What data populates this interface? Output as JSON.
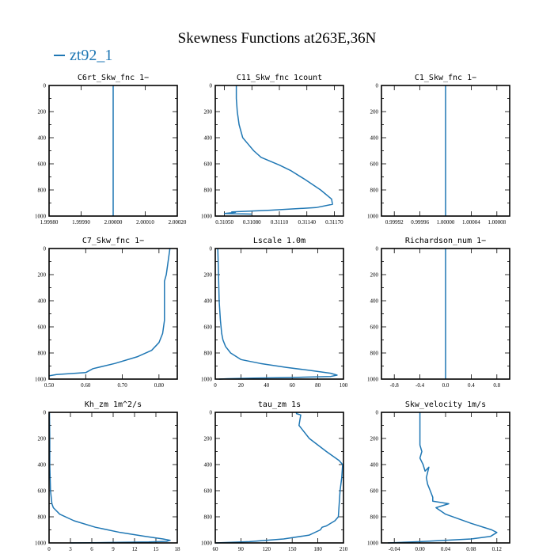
{
  "figure": {
    "title": "Skewness Functions at263E,36N",
    "legend_label": "zt92_1",
    "series_color": "#1f77b4"
  },
  "chart_data": [
    {
      "type": "line",
      "title": "C6rt_Skw_fnc   1−",
      "xlim": [
        1.9998,
        2.0002
      ],
      "ylim": [
        1000,
        0
      ],
      "xticks": [
        1.9998,
        1.9999,
        2.0,
        2.0001,
        2.0002
      ],
      "xtick_labels": [
        "1.99980",
        "1.99990",
        "2.00000",
        "2.00010",
        "2.00020"
      ],
      "yticks": [
        0,
        200,
        400,
        600,
        800,
        1000
      ],
      "series": [
        {
          "x": [
            2.0,
            2.0
          ],
          "y": [
            0,
            1000
          ]
        }
      ]
    },
    {
      "type": "line",
      "title": "C11_Skw_fnc   1count",
      "xlim": [
        0.3104,
        0.3118
      ],
      "ylim": [
        1000,
        0
      ],
      "xticks": [
        0.3105,
        0.3108,
        0.3111,
        0.3114,
        0.3117
      ],
      "xtick_labels": [
        "0.31050",
        "0.31080",
        "0.31110",
        "0.31140",
        "0.31170"
      ],
      "yticks": [
        0,
        200,
        400,
        600,
        800,
        1000
      ],
      "series": [
        {
          "x": [
            0.31063,
            0.31063,
            0.31064,
            0.31066,
            0.3107,
            0.31076,
            0.31082,
            0.3109,
            0.311,
            0.3111,
            0.31122,
            0.31138,
            0.31155,
            0.31167,
            0.31168,
            0.3115,
            0.311,
            0.31058,
            0.31062,
            0.3105,
            0.3108
          ],
          "y": [
            0,
            100,
            200,
            300,
            400,
            450,
            500,
            550,
            580,
            610,
            650,
            720,
            800,
            870,
            910,
            935,
            955,
            968,
            972,
            980,
            985
          ]
        }
      ]
    },
    {
      "type": "line",
      "title": "C1_Skw_fnc   1−",
      "xlim": [
        0.9999,
        1.0001
      ],
      "ylim": [
        1000,
        0
      ],
      "xticks": [
        0.99992,
        0.99996,
        1.0,
        1.00004,
        1.00008
      ],
      "xtick_labels": [
        "0.99992",
        "0.99996",
        "1.00000",
        "1.00004",
        "1.00008"
      ],
      "yticks": [
        0,
        200,
        400,
        600,
        800,
        1000
      ],
      "series": [
        {
          "x": [
            1.0,
            1.0
          ],
          "y": [
            0,
            1000
          ]
        }
      ]
    },
    {
      "type": "line",
      "title": "C7_Skw_fnc   1−",
      "xlim": [
        0.5,
        0.85
      ],
      "ylim": [
        1000,
        0
      ],
      "xticks": [
        0.5,
        0.6,
        0.7,
        0.8
      ],
      "xtick_labels": [
        "0.50",
        "0.60",
        "0.70",
        "0.80"
      ],
      "yticks": [
        0,
        200,
        400,
        600,
        800,
        1000
      ],
      "series": [
        {
          "x": [
            0.83,
            0.825,
            0.82,
            0.815,
            0.815,
            0.815,
            0.81,
            0.8,
            0.78,
            0.74,
            0.68,
            0.62,
            0.6,
            0.52,
            0.5
          ],
          "y": [
            0,
            100,
            200,
            250,
            400,
            550,
            650,
            720,
            780,
            830,
            880,
            920,
            950,
            965,
            975
          ]
        }
      ]
    },
    {
      "type": "line",
      "title": "Lscale   1.0m",
      "xlim": [
        0,
        100
      ],
      "ylim": [
        1000,
        0
      ],
      "xticks": [
        0,
        20,
        40,
        60,
        80,
        100
      ],
      "xtick_labels": [
        "0",
        "20",
        "40",
        "60",
        "80",
        "100"
      ],
      "yticks": [
        0,
        200,
        400,
        600,
        800,
        1000
      ],
      "series": [
        {
          "x": [
            2,
            2.5,
            3,
            4,
            5,
            6,
            8,
            12,
            20,
            35,
            55,
            75,
            90,
            95,
            90,
            60,
            30,
            10,
            3
          ],
          "y": [
            0,
            200,
            400,
            550,
            650,
            700,
            750,
            800,
            850,
            880,
            910,
            935,
            955,
            970,
            980,
            988,
            993,
            997,
            1000
          ]
        }
      ]
    },
    {
      "type": "line",
      "title": "Richardson_num   1−",
      "xlim": [
        -1,
        1
      ],
      "ylim": [
        1000,
        0
      ],
      "xticks": [
        -0.8,
        -0.4,
        0.0,
        0.4,
        0.8
      ],
      "xtick_labels": [
        "-0.8",
        "-0.4",
        "0.0",
        "0.4",
        "0.8"
      ],
      "yticks": [
        0,
        200,
        400,
        600,
        800,
        1000
      ],
      "series": [
        {
          "x": [
            0,
            0
          ],
          "y": [
            0,
            1000
          ]
        }
      ]
    },
    {
      "type": "line",
      "title": "Kh_zm   1m^2/s",
      "xlim": [
        0,
        18
      ],
      "ylim": [
        1000,
        0
      ],
      "xticks": [
        0,
        3,
        6,
        9,
        12,
        15,
        18
      ],
      "xtick_labels": [
        "0",
        "3",
        "6",
        "9",
        "12",
        "15",
        "18"
      ],
      "yticks": [
        0,
        200,
        400,
        600,
        800,
        1000
      ],
      "series": [
        {
          "x": [
            0.05,
            0.1,
            0.1,
            0.2,
            0.3,
            0.4,
            0.6,
            1.5,
            3.5,
            6.5,
            10,
            13.5,
            16,
            17,
            16.5,
            14,
            8,
            3
          ],
          "y": [
            0,
            200,
            400,
            600,
            650,
            700,
            730,
            780,
            830,
            880,
            920,
            950,
            970,
            980,
            988,
            993,
            997,
            1000
          ]
        }
      ]
    },
    {
      "type": "line",
      "title": "tau_zm   1s",
      "xlim": [
        60,
        210
      ],
      "ylim": [
        1000,
        0
      ],
      "xticks": [
        60,
        90,
        120,
        150,
        180,
        210
      ],
      "xtick_labels": [
        "60",
        "90",
        "120",
        "150",
        "180",
        "210"
      ],
      "yticks": [
        0,
        200,
        400,
        600,
        800,
        1000
      ],
      "series": [
        {
          "x": [
            155,
            155,
            160,
            158,
            170,
            190,
            205,
            209,
            208,
            206,
            205,
            204,
            200,
            190,
            185,
            183,
            170,
            140,
            100,
            60
          ],
          "y": [
            0,
            10,
            20,
            100,
            200,
            300,
            370,
            400,
            500,
            600,
            700,
            800,
            830,
            870,
            880,
            900,
            940,
            970,
            990,
            1000
          ]
        }
      ]
    },
    {
      "type": "line",
      "title": "Skw_velocity   1m/s",
      "xlim": [
        -0.06,
        0.14
      ],
      "ylim": [
        1000,
        0
      ],
      "xticks": [
        -0.04,
        0.0,
        0.04,
        0.08,
        0.12
      ],
      "xtick_labels": [
        "-0.04",
        "0.00",
        "0.04",
        "0.08",
        "0.12"
      ],
      "yticks": [
        0,
        200,
        400,
        600,
        800,
        1000
      ],
      "series": [
        {
          "x": [
            0.0,
            0.0,
            0.0,
            0.003,
            0.0,
            0.005,
            0.008,
            0.014,
            0.01,
            0.012,
            0.016,
            0.02,
            0.02,
            0.045,
            0.025,
            0.04,
            0.08,
            0.112,
            0.12,
            0.11,
            0.08,
            0.0,
            -0.05
          ],
          "y": [
            0,
            150,
            250,
            300,
            350,
            400,
            450,
            420,
            500,
            550,
            600,
            650,
            680,
            700,
            730,
            780,
            850,
            900,
            920,
            950,
            970,
            990,
            1000
          ]
        }
      ]
    }
  ]
}
